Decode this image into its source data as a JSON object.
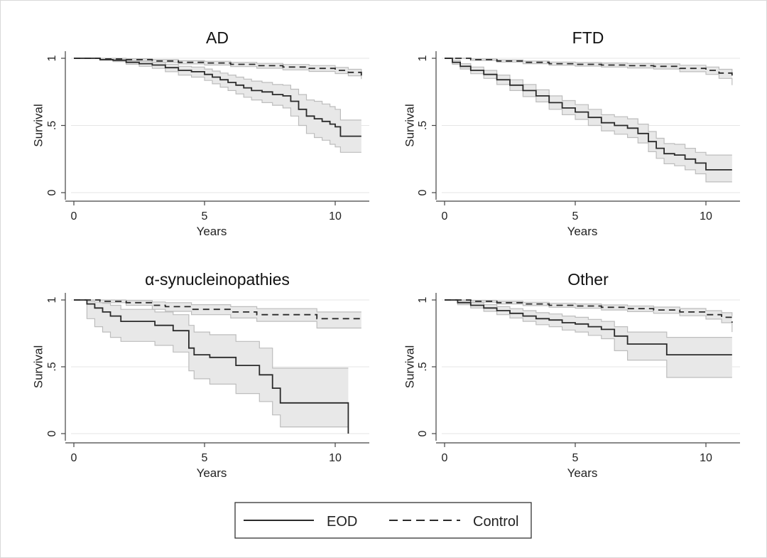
{
  "chart_data": [
    {
      "type": "line",
      "title": "AD",
      "xlabel": "Years",
      "ylabel": "Survival",
      "xlim": [
        0,
        11
      ],
      "ylim": [
        0,
        1
      ],
      "xticks": [
        0,
        5,
        10
      ],
      "xtick_labels": [
        "0",
        "5",
        "10"
      ],
      "yticks": [
        0,
        0.5,
        1
      ],
      "ytick_labels": [
        "0",
        ".5",
        "1"
      ],
      "series": [
        {
          "name": "EOD",
          "style": "solid",
          "x": [
            0,
            1,
            1.5,
            2,
            2.5,
            3,
            3.5,
            4,
            4.5,
            5,
            5.3,
            5.6,
            5.9,
            6.2,
            6.5,
            6.8,
            7.2,
            7.6,
            8,
            8.3,
            8.6,
            8.9,
            9.2,
            9.5,
            9.8,
            10,
            10.2,
            11
          ],
          "y": [
            1,
            0.99,
            0.985,
            0.97,
            0.96,
            0.95,
            0.93,
            0.91,
            0.9,
            0.88,
            0.86,
            0.84,
            0.82,
            0.8,
            0.78,
            0.76,
            0.75,
            0.73,
            0.72,
            0.68,
            0.62,
            0.57,
            0.55,
            0.53,
            0.51,
            0.49,
            0.42,
            0.42
          ],
          "ci_lower": [
            1,
            0.985,
            0.975,
            0.955,
            0.94,
            0.925,
            0.9,
            0.875,
            0.86,
            0.835,
            0.81,
            0.785,
            0.76,
            0.735,
            0.71,
            0.69,
            0.67,
            0.65,
            0.63,
            0.57,
            0.5,
            0.44,
            0.41,
            0.39,
            0.36,
            0.34,
            0.3,
            0.3
          ],
          "ci_upper": [
            1,
            0.995,
            0.99,
            0.98,
            0.975,
            0.97,
            0.955,
            0.94,
            0.935,
            0.92,
            0.905,
            0.89,
            0.875,
            0.86,
            0.845,
            0.83,
            0.82,
            0.805,
            0.8,
            0.77,
            0.73,
            0.69,
            0.68,
            0.66,
            0.64,
            0.62,
            0.54,
            0.54
          ]
        },
        {
          "name": "Control",
          "style": "dashed",
          "x": [
            0,
            1,
            2,
            3,
            4,
            5,
            6,
            7,
            8,
            9,
            10,
            10.5,
            11
          ],
          "y": [
            1,
            0.995,
            0.99,
            0.98,
            0.97,
            0.965,
            0.955,
            0.945,
            0.935,
            0.925,
            0.91,
            0.895,
            0.87
          ],
          "ci_lower": [
            1,
            0.99,
            0.983,
            0.97,
            0.958,
            0.95,
            0.938,
            0.926,
            0.914,
            0.902,
            0.886,
            0.87,
            0.845
          ],
          "ci_upper": [
            1,
            1,
            0.997,
            0.99,
            0.982,
            0.978,
            0.97,
            0.962,
            0.954,
            0.946,
            0.932,
            0.918,
            0.895
          ]
        }
      ]
    },
    {
      "type": "line",
      "title": "FTD",
      "xlabel": "Years",
      "ylabel": "Survival",
      "xlim": [
        0,
        11
      ],
      "ylim": [
        0,
        1
      ],
      "xticks": [
        0,
        5,
        10
      ],
      "xtick_labels": [
        "0",
        "5",
        "10"
      ],
      "yticks": [
        0,
        0.5,
        1
      ],
      "ytick_labels": [
        "0",
        ".5",
        "1"
      ],
      "series": [
        {
          "name": "EOD",
          "style": "solid",
          "x": [
            0,
            0.3,
            0.6,
            1,
            1.5,
            2,
            2.5,
            3,
            3.5,
            4,
            4.5,
            5,
            5.5,
            6,
            6.5,
            7,
            7.4,
            7.8,
            8.1,
            8.4,
            8.8,
            9.2,
            9.6,
            10,
            11
          ],
          "y": [
            1,
            0.97,
            0.94,
            0.91,
            0.88,
            0.84,
            0.8,
            0.76,
            0.72,
            0.67,
            0.63,
            0.6,
            0.56,
            0.52,
            0.5,
            0.48,
            0.44,
            0.38,
            0.33,
            0.29,
            0.28,
            0.25,
            0.22,
            0.17,
            0.17
          ],
          "ci_lower": [
            1,
            0.955,
            0.92,
            0.885,
            0.85,
            0.805,
            0.76,
            0.715,
            0.675,
            0.62,
            0.58,
            0.545,
            0.5,
            0.46,
            0.435,
            0.41,
            0.37,
            0.305,
            0.255,
            0.215,
            0.2,
            0.17,
            0.14,
            0.08,
            0.08
          ],
          "ci_upper": [
            1,
            0.985,
            0.96,
            0.935,
            0.91,
            0.875,
            0.84,
            0.805,
            0.765,
            0.72,
            0.685,
            0.655,
            0.62,
            0.58,
            0.565,
            0.55,
            0.51,
            0.455,
            0.405,
            0.365,
            0.36,
            0.33,
            0.3,
            0.28,
            0.28
          ]
        },
        {
          "name": "Control",
          "style": "dashed",
          "x": [
            0,
            1,
            2,
            3,
            4,
            5,
            6,
            7,
            8,
            9,
            10,
            10.5,
            11
          ],
          "y": [
            1,
            0.99,
            0.98,
            0.97,
            0.96,
            0.955,
            0.95,
            0.945,
            0.94,
            0.925,
            0.91,
            0.89,
            0.85
          ],
          "ci_lower": [
            1,
            0.984,
            0.972,
            0.96,
            0.948,
            0.942,
            0.935,
            0.928,
            0.92,
            0.9,
            0.88,
            0.85,
            0.8
          ],
          "ci_upper": [
            1,
            0.996,
            0.988,
            0.98,
            0.972,
            0.968,
            0.965,
            0.962,
            0.958,
            0.948,
            0.935,
            0.918,
            0.885
          ]
        }
      ]
    },
    {
      "type": "line",
      "title": "α-synucleinopathies",
      "xlabel": "Years",
      "ylabel": "Survival",
      "xlim": [
        0,
        11
      ],
      "ylim": [
        0,
        1
      ],
      "xticks": [
        0,
        5,
        10
      ],
      "xtick_labels": [
        "0",
        "5",
        "10"
      ],
      "yticks": [
        0,
        0.5,
        1
      ],
      "ytick_labels": [
        "0",
        ".5",
        "1"
      ],
      "series": [
        {
          "name": "EOD",
          "style": "solid",
          "x": [
            0,
            0.5,
            0.8,
            1.1,
            1.4,
            1.8,
            3.1,
            3.8,
            4.4,
            4.6,
            5.2,
            6.2,
            7.1,
            7.6,
            7.9,
            10.5
          ],
          "y": [
            1,
            0.97,
            0.94,
            0.91,
            0.88,
            0.84,
            0.81,
            0.77,
            0.64,
            0.59,
            0.57,
            0.51,
            0.44,
            0.34,
            0.23,
            0
          ],
          "ci_lower": [
            1,
            0.86,
            0.8,
            0.76,
            0.72,
            0.69,
            0.66,
            0.61,
            0.47,
            0.41,
            0.37,
            0.3,
            0.24,
            0.14,
            0.05,
            0.05
          ],
          "ci_upper": [
            1,
            0.99,
            0.985,
            0.975,
            0.96,
            0.93,
            0.91,
            0.89,
            0.81,
            0.76,
            0.74,
            0.69,
            0.64,
            0.49,
            0.49,
            0.49
          ]
        },
        {
          "name": "Control",
          "style": "dashed",
          "x": [
            0,
            1,
            2,
            3,
            3.5,
            4.5,
            6,
            7,
            8,
            9,
            9.3,
            11
          ],
          "y": [
            1,
            0.99,
            0.98,
            0.96,
            0.95,
            0.93,
            0.91,
            0.89,
            0.89,
            0.89,
            0.86,
            0.86
          ],
          "ci_lower": [
            1,
            0.98,
            0.96,
            0.93,
            0.915,
            0.89,
            0.865,
            0.84,
            0.84,
            0.84,
            0.79,
            0.79
          ],
          "ci_upper": [
            1,
            1,
            0.995,
            0.985,
            0.98,
            0.965,
            0.95,
            0.935,
            0.935,
            0.935,
            0.91,
            0.91
          ]
        }
      ]
    },
    {
      "type": "line",
      "title": "Other",
      "xlabel": "Years",
      "ylabel": "Survival",
      "xlim": [
        0,
        11
      ],
      "ylim": [
        0,
        1
      ],
      "xticks": [
        0,
        5,
        10
      ],
      "xtick_labels": [
        "0",
        "5",
        "10"
      ],
      "yticks": [
        0,
        0.5,
        1
      ],
      "ytick_labels": [
        "0",
        ".5",
        "1"
      ],
      "series": [
        {
          "name": "EOD",
          "style": "solid",
          "x": [
            0,
            0.5,
            1,
            1.5,
            2,
            2.5,
            3,
            3.5,
            4,
            4.5,
            5,
            5.5,
            6,
            6.5,
            7,
            8.5,
            11
          ],
          "y": [
            1,
            0.98,
            0.96,
            0.94,
            0.92,
            0.9,
            0.88,
            0.86,
            0.85,
            0.83,
            0.82,
            0.8,
            0.78,
            0.73,
            0.67,
            0.59,
            0.59
          ],
          "ci_lower": [
            1,
            0.965,
            0.94,
            0.915,
            0.89,
            0.865,
            0.84,
            0.815,
            0.8,
            0.775,
            0.76,
            0.735,
            0.71,
            0.62,
            0.55,
            0.42,
            0.42
          ],
          "ci_upper": [
            1,
            0.99,
            0.98,
            0.965,
            0.95,
            0.935,
            0.92,
            0.905,
            0.895,
            0.88,
            0.87,
            0.855,
            0.84,
            0.8,
            0.76,
            0.72,
            0.72
          ]
        },
        {
          "name": "Control",
          "style": "dashed",
          "x": [
            0,
            1,
            2,
            3,
            4,
            5,
            6,
            7,
            8,
            9,
            10,
            10.6,
            11
          ],
          "y": [
            1,
            0.99,
            0.98,
            0.97,
            0.96,
            0.955,
            0.945,
            0.935,
            0.925,
            0.91,
            0.89,
            0.87,
            0.83
          ],
          "ci_lower": [
            1,
            0.983,
            0.97,
            0.958,
            0.945,
            0.938,
            0.925,
            0.913,
            0.9,
            0.882,
            0.857,
            0.83,
            0.76
          ],
          "ci_upper": [
            1,
            0.997,
            0.99,
            0.983,
            0.975,
            0.97,
            0.963,
            0.955,
            0.947,
            0.936,
            0.92,
            0.905,
            0.88
          ]
        }
      ]
    }
  ],
  "legend": {
    "items": [
      {
        "label": "EOD",
        "style": "solid"
      },
      {
        "label": "Control",
        "style": "dashed"
      }
    ],
    "placement": "bottom-center"
  },
  "colors": {
    "line": "#2a2a2a",
    "ci_fill": "#e8e8e8",
    "ci_edge": "#bdbdbd",
    "grid": "#e6e6e6",
    "axis": "#444444"
  }
}
